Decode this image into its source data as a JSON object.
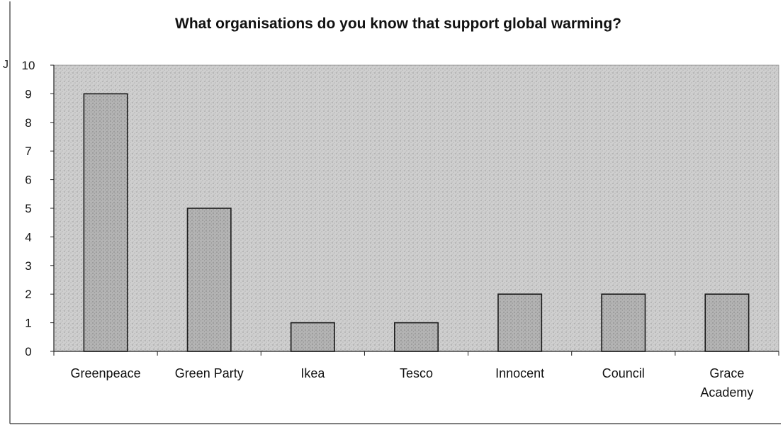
{
  "chart_data": {
    "type": "bar",
    "title": "What organisations do you know that support global warming?",
    "categories": [
      "Greenpeace",
      "Green Party",
      "Ikea",
      "Tesco",
      "Innocent",
      "Council",
      "Grace Academy"
    ],
    "values": [
      9,
      5,
      1,
      1,
      2,
      2,
      2
    ],
    "ylim": [
      0,
      10
    ],
    "yticks": [
      "0",
      "1",
      "2",
      "3",
      "4",
      "5",
      "6",
      "7",
      "8",
      "9",
      "10"
    ],
    "xlabel": "",
    "ylabel": "",
    "grid": false,
    "legend": "none",
    "colors": {
      "plot_fill": "#c4c4c4",
      "bar_fill": "#a8a8a8",
      "bar_stroke": "#1a1a1a",
      "axis": "#222222",
      "text": "#111111"
    }
  },
  "scan_mark": "J"
}
